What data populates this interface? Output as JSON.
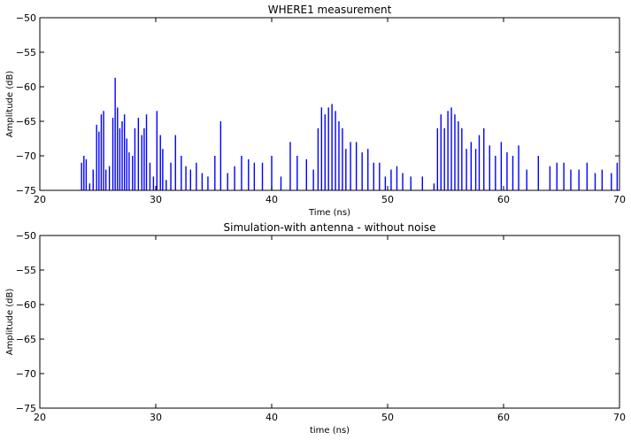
{
  "chart_data": [
    {
      "type": "line",
      "title": "WHERE1 measurement",
      "xlabel": "Time (ns)",
      "ylabel": "Amplitude (dB)",
      "xlim": [
        20,
        70
      ],
      "ylim": [
        -75,
        -50
      ],
      "xticks": [
        20,
        30,
        40,
        50,
        60,
        70
      ],
      "yticks": [
        -50,
        -55,
        -60,
        -65,
        -70,
        -75
      ],
      "xtick_labels": [
        "20",
        "30",
        "40",
        "50",
        "60",
        "70"
      ],
      "ytick_labels": [
        "−50",
        "−55",
        "−60",
        "−65",
        "−70",
        "−75"
      ],
      "grid": false,
      "series": [
        {
          "color": "#0000ff",
          "x": [
            23.6,
            23.8,
            24.0,
            24.3,
            24.6,
            24.9,
            25.1,
            25.3,
            25.5,
            25.7,
            26.0,
            26.3,
            26.5,
            26.7,
            26.9,
            27.1,
            27.3,
            27.5,
            27.7,
            28.0,
            28.2,
            28.5,
            28.8,
            29.0,
            29.2,
            29.5,
            29.8,
            30.1,
            30.4,
            30.6,
            30.9,
            31.3,
            31.7,
            32.2,
            32.6,
            33.0,
            33.5,
            34.0,
            34.5,
            35.1,
            35.6,
            36.2,
            36.8,
            37.4,
            38.0,
            38.5,
            39.2,
            40.0,
            40.8,
            41.6,
            42.2,
            43.0,
            43.6,
            44.0,
            44.3,
            44.6,
            44.9,
            45.2,
            45.5,
            45.8,
            46.1,
            46.4,
            46.8,
            47.3,
            47.8,
            48.3,
            48.8,
            49.3,
            49.8,
            50.3,
            50.8,
            51.3,
            52.0,
            53.0,
            54.0,
            54.3,
            54.6,
            54.9,
            55.2,
            55.5,
            55.8,
            56.1,
            56.4,
            56.8,
            57.2,
            57.6,
            57.9,
            58.3,
            58.8,
            59.3,
            59.8,
            60.3,
            60.8,
            61.3,
            62.0,
            63.0,
            64.0,
            64.6,
            65.2,
            65.8,
            66.5,
            67.2,
            67.9,
            68.5,
            69.3,
            69.8
          ],
          "y": [
            -71.0,
            -70.0,
            -70.5,
            -74.0,
            -72.0,
            -65.5,
            -66.5,
            -64.0,
            -63.5,
            -72.0,
            -71.5,
            -64.5,
            -58.7,
            -63.0,
            -66.0,
            -65.0,
            -64.0,
            -67.5,
            -69.5,
            -70.0,
            -66.0,
            -64.5,
            -67.0,
            -66.0,
            -64.0,
            -71.0,
            -73.0,
            -63.5,
            -67.0,
            -69.0,
            -73.5,
            -71.0,
            -67.0,
            -70.0,
            -71.5,
            -72.0,
            -71.0,
            -72.5,
            -73.0,
            -70.0,
            -65.0,
            -72.5,
            -71.5,
            -70.0,
            -70.5,
            -71.0,
            -71.0,
            -70.0,
            -73.0,
            -68.0,
            -70.0,
            -70.5,
            -72.0,
            -66.0,
            -63.0,
            -64.0,
            -63.0,
            -62.5,
            -63.5,
            -65.0,
            -66.0,
            -69.0,
            -68.0,
            -68.0,
            -69.5,
            -69.0,
            -71.0,
            -71.0,
            -73.0,
            -72.0,
            -71.5,
            -72.5,
            -73.0,
            -73.0,
            -74.0,
            -66.0,
            -64.0,
            -66.0,
            -63.5,
            -63.0,
            -64.0,
            -65.0,
            -66.0,
            -69.0,
            -68.0,
            -69.0,
            -67.0,
            -66.0,
            -68.5,
            -70.0,
            -68.0,
            -69.5,
            -70.0,
            -68.5,
            -72.0,
            -70.0,
            -71.5,
            -71.0,
            -71.0,
            -72.0,
            -72.0,
            -71.0,
            -72.5,
            -72.0,
            -72.5,
            -71.0
          ]
        }
      ]
    },
    {
      "type": "line",
      "title": "Simulation-with antenna - without noise",
      "xlabel": "time (ns)",
      "ylabel": "Amplitude (dB)",
      "xlim": [
        20,
        70
      ],
      "ylim": [
        -75,
        -50
      ],
      "xticks": [
        20,
        30,
        40,
        50,
        60,
        70
      ],
      "yticks": [
        -50,
        -55,
        -60,
        -65,
        -70,
        -75
      ],
      "xtick_labels": [
        "20",
        "30",
        "40",
        "50",
        "60",
        "70"
      ],
      "ytick_labels": [
        "−50",
        "−55",
        "−60",
        "−65",
        "−70",
        "−75"
      ],
      "grid": false,
      "series": []
    }
  ]
}
